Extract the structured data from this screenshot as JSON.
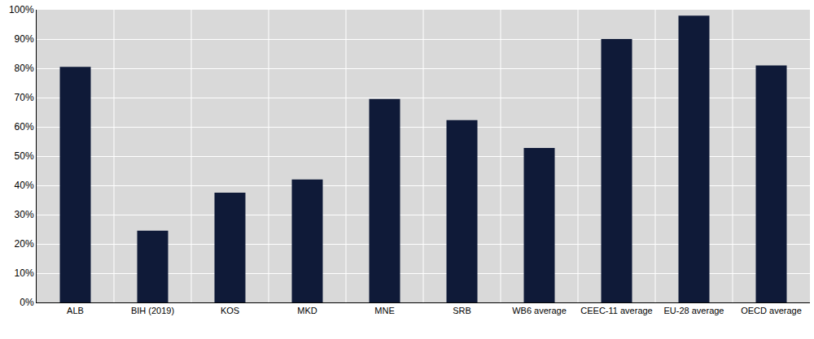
{
  "chart_data": {
    "type": "bar",
    "categories": [
      "ALB",
      "BIH (2019)",
      "KOS",
      "MKD",
      "MNE",
      "SRB",
      "WB6 average",
      "CEEC-11 average",
      "EU-28 average",
      "OECD average"
    ],
    "values": [
      80.5,
      24.5,
      37.5,
      42,
      69.5,
      62.3,
      52.8,
      90,
      98,
      81
    ],
    "color": "#0f1a38",
    "ylim": [
      0,
      100
    ],
    "yticks": [
      {
        "value": 0,
        "label": "0%"
      },
      {
        "value": 10,
        "label": "10%"
      },
      {
        "value": 20,
        "label": "20%"
      },
      {
        "value": 30,
        "label": "30%"
      },
      {
        "value": 40,
        "label": "40%"
      },
      {
        "value": 50,
        "label": "50%"
      },
      {
        "value": 60,
        "label": "60%"
      },
      {
        "value": 70,
        "label": "70%"
      },
      {
        "value": 80,
        "label": "80%"
      },
      {
        "value": 90,
        "label": "90%"
      },
      {
        "value": 100,
        "label": "100%"
      }
    ],
    "grid": true
  }
}
